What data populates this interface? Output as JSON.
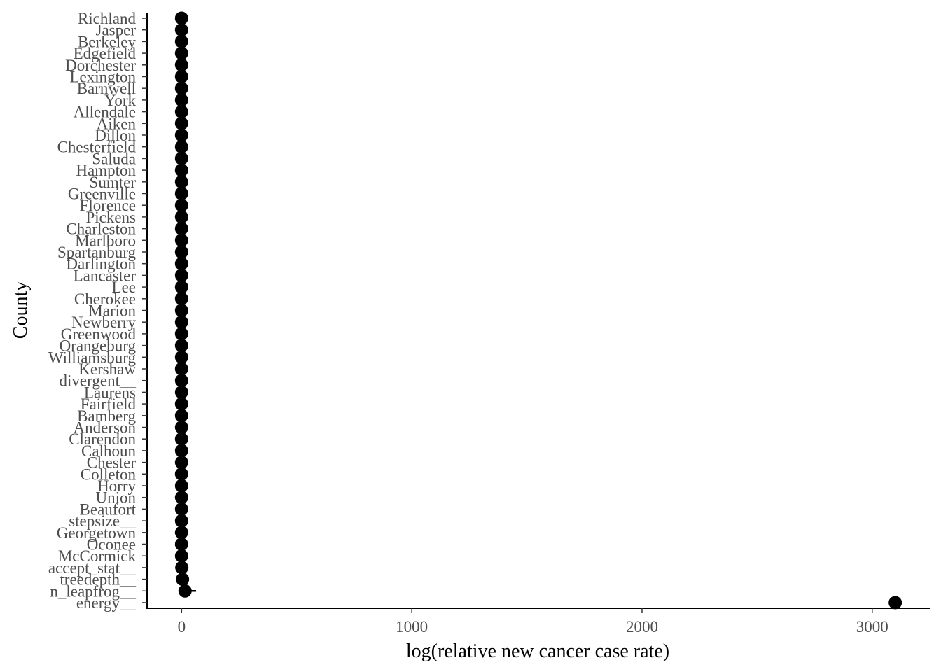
{
  "chart_data": {
    "type": "scatter",
    "title": "",
    "xlabel": "log(relative new cancer case rate)",
    "ylabel": "County",
    "xlim": [
      -150,
      3250
    ],
    "x_ticks": [
      0,
      1000,
      2000,
      3000
    ],
    "x_tick_labels": [
      "0",
      "1000",
      "2000",
      "3000"
    ],
    "grid": false,
    "marker_color": "#000000",
    "points": [
      {
        "label": "Richland",
        "x": 0
      },
      {
        "label": "Jasper",
        "x": 0
      },
      {
        "label": "Berkeley",
        "x": 0
      },
      {
        "label": "Edgefield",
        "x": 0
      },
      {
        "label": "Dorchester",
        "x": 0
      },
      {
        "label": "Lexington",
        "x": 0
      },
      {
        "label": "Barnwell",
        "x": 0
      },
      {
        "label": "York",
        "x": 0
      },
      {
        "label": "Allendale",
        "x": 0
      },
      {
        "label": "Aiken",
        "x": 0
      },
      {
        "label": "Dillon",
        "x": 0
      },
      {
        "label": "Chesterfield",
        "x": 0
      },
      {
        "label": "Saluda",
        "x": 0
      },
      {
        "label": "Hampton",
        "x": 0
      },
      {
        "label": "Sumter",
        "x": 0
      },
      {
        "label": "Greenville",
        "x": 0
      },
      {
        "label": "Florence",
        "x": 0
      },
      {
        "label": "Pickens",
        "x": 0
      },
      {
        "label": "Charleston",
        "x": 0
      },
      {
        "label": "Marlboro",
        "x": 0
      },
      {
        "label": "Spartanburg",
        "x": 0
      },
      {
        "label": "Darlington",
        "x": 0
      },
      {
        "label": "Lancaster",
        "x": 0
      },
      {
        "label": "Lee",
        "x": 0
      },
      {
        "label": "Cherokee",
        "x": 0
      },
      {
        "label": "Marion",
        "x": 0
      },
      {
        "label": "Newberry",
        "x": 0
      },
      {
        "label": "Greenwood",
        "x": 0
      },
      {
        "label": "Orangeburg",
        "x": 0
      },
      {
        "label": "Williamsburg",
        "x": 0
      },
      {
        "label": "Kershaw",
        "x": 0
      },
      {
        "label": "divergent__",
        "x": 0
      },
      {
        "label": "Laurens",
        "x": 0
      },
      {
        "label": "Fairfield",
        "x": 0
      },
      {
        "label": "Bamberg",
        "x": 0
      },
      {
        "label": "Anderson",
        "x": 0
      },
      {
        "label": "Clarendon",
        "x": 0
      },
      {
        "label": "Calhoun",
        "x": 0
      },
      {
        "label": "Chester",
        "x": 0
      },
      {
        "label": "Colleton",
        "x": 0
      },
      {
        "label": "Horry",
        "x": 0
      },
      {
        "label": "Union",
        "x": 0
      },
      {
        "label": "Beaufort",
        "x": 0
      },
      {
        "label": "stepsize__",
        "x": 0
      },
      {
        "label": "Georgetown",
        "x": 0
      },
      {
        "label": "Oconee",
        "x": 0
      },
      {
        "label": "McCormick",
        "x": 0
      },
      {
        "label": "accept_stat__",
        "x": 1
      },
      {
        "label": "treedepth__",
        "x": 4
      },
      {
        "label": "n_leapfrog__",
        "x": 15,
        "xmin": 0,
        "xmax": 63
      },
      {
        "label": "energy__",
        "x": 3100
      }
    ]
  }
}
